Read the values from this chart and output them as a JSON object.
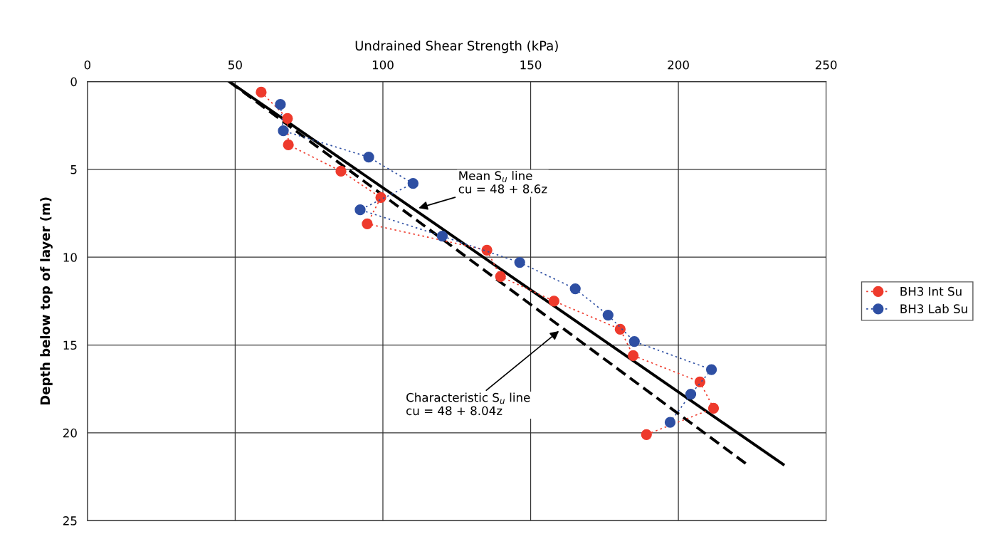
{
  "chart_data": {
    "type": "line",
    "xlabel": "Undrained Shear Strength (kPa)",
    "ylabel": "Depth below top of layer (m)",
    "xlim": [
      0,
      250
    ],
    "xticks": [
      0,
      50,
      100,
      150,
      200,
      250
    ],
    "ylim": [
      25,
      0
    ],
    "yticks": [
      0,
      5,
      10,
      15,
      20,
      25
    ],
    "grid": true,
    "legend": "right",
    "marker": "circle",
    "series": [
      {
        "name": "BH3 Int Su",
        "color": "#ee3a2c",
        "line_style": "dotted",
        "x": [
          58.8,
          67.7,
          68.0,
          85.8,
          99.3,
          94.7,
          135.2,
          139.8,
          157.9,
          180.3,
          184.7,
          207.3,
          211.9,
          189.2
        ],
        "values": [
          0.6,
          2.1,
          3.6,
          5.1,
          6.6,
          8.1,
          9.6,
          11.1,
          12.5,
          14.1,
          15.6,
          17.1,
          18.6,
          20.1
        ]
      },
      {
        "name": "BH3 Lab Su",
        "color": "#2e4fa3",
        "line_style": "dotted",
        "x": [
          65.3,
          66.3,
          95.2,
          110.2,
          92.3,
          120.1,
          146.3,
          165.1,
          176.2,
          185.1,
          211.2,
          204.2,
          197.2
        ],
        "values": [
          1.3,
          2.8,
          4.3,
          5.8,
          7.3,
          8.8,
          10.3,
          11.8,
          13.3,
          14.8,
          16.4,
          17.8,
          19.4
        ]
      },
      {
        "color": "#000000",
        "line_style": "solid",
        "marker": "none",
        "x": [
          48,
          235.5
        ],
        "values": [
          0,
          21.8
        ]
      },
      {
        "color": "#000000",
        "line_style": "dashed",
        "marker": "none",
        "x": [
          48,
          224
        ],
        "values": [
          0,
          21.9
        ]
      }
    ],
    "annotations": [
      {
        "text": "Mean S$_{u}$ line\ncu = 48 + 8.6z",
        "x": 112.1,
        "y": 7.2
      },
      {
        "text": "Characteristic S$_{u}$ line\ncu = 48 + 8.04z",
        "x": 159.6,
        "y": 14.2
      }
    ]
  }
}
